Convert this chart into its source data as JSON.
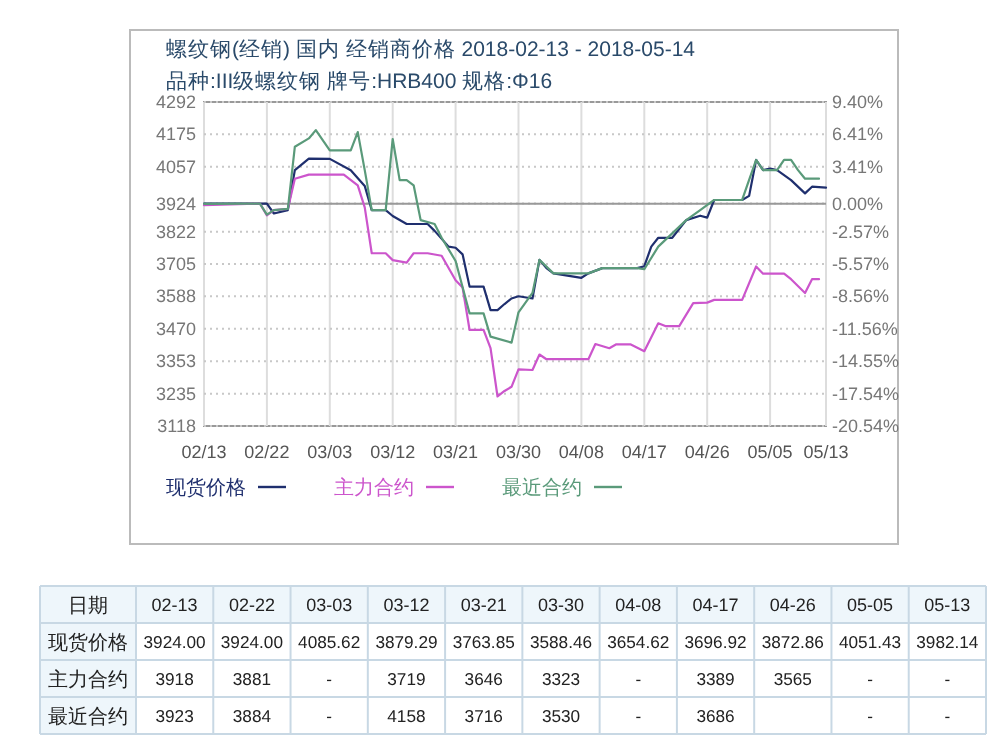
{
  "chart_data": [
    {
      "type": "line",
      "title": "螺纹钢(经销) 国内 经销商价格 2018-02-13 - 2018-05-14",
      "subtitle": "品种:III级螺纹钢 牌号:HRB400 规格:Φ16",
      "xlim": [
        "2018-02-13",
        "2018-05-13"
      ],
      "xticks": [
        {
          "value": "2018-02-13",
          "label": "02/13"
        },
        {
          "value": "2018-02-22",
          "label": "02/22"
        },
        {
          "value": "2018-03-03",
          "label": "03/03"
        },
        {
          "value": "2018-03-12",
          "label": "03/12"
        },
        {
          "value": "2018-03-21",
          "label": "03/21"
        },
        {
          "value": "2018-03-30",
          "label": "03/30"
        },
        {
          "value": "2018-04-08",
          "label": "04/08"
        },
        {
          "value": "2018-04-17",
          "label": "04/17"
        },
        {
          "value": "2018-04-26",
          "label": "04/26"
        },
        {
          "value": "2018-05-05",
          "label": "05/05"
        },
        {
          "value": "2018-05-13",
          "label": "05/13"
        }
      ],
      "ylim": [
        3118,
        4292
      ],
      "yticks": [
        3118,
        3235,
        3353,
        3470,
        3588,
        3705,
        3822,
        3924,
        4057,
        4175,
        4292
      ],
      "y2lim": [
        -20.54,
        9.4
      ],
      "y2ticks": [
        {
          "value": -20.54,
          "label": "-20.54%"
        },
        {
          "value": -17.54,
          "label": "-17.54%"
        },
        {
          "value": -14.55,
          "label": "-14.55%"
        },
        {
          "value": -11.56,
          "label": "-11.56%"
        },
        {
          "value": -8.56,
          "label": "-8.56%"
        },
        {
          "value": -5.57,
          "label": "-5.57%"
        },
        {
          "value": -2.57,
          "label": "-2.57%"
        },
        {
          "value": 0,
          "label": "0.00%"
        },
        {
          "value": 3.41,
          "label": "3.41%"
        },
        {
          "value": 6.41,
          "label": "6.41%"
        },
        {
          "value": 9.4,
          "label": "9.40%"
        }
      ],
      "ref_lines": [
        {
          "axis": "y2",
          "value": 0,
          "color": "#999999"
        }
      ],
      "grid": true,
      "legend": "bottom",
      "series": [
        {
          "name": "现货价格",
          "color": "#1f2f6e",
          "x": [
            "2018-02-13",
            "2018-02-21",
            "2018-02-22",
            "2018-02-23",
            "2018-02-25",
            "2018-02-26",
            "2018-02-28",
            "2018-03-03",
            "2018-03-06",
            "2018-03-08",
            "2018-03-09",
            "2018-03-11",
            "2018-03-12",
            "2018-03-14",
            "2018-03-17",
            "2018-03-18",
            "2018-03-20",
            "2018-03-21",
            "2018-03-22",
            "2018-03-23",
            "2018-03-25",
            "2018-03-26",
            "2018-03-27",
            "2018-03-28",
            "2018-03-29",
            "2018-03-30",
            "2018-04-01",
            "2018-04-02",
            "2018-04-03",
            "2018-04-04",
            "2018-04-08",
            "2018-04-09",
            "2018-04-11",
            "2018-04-16",
            "2018-04-17",
            "2018-04-18",
            "2018-04-19",
            "2018-04-21",
            "2018-04-23",
            "2018-04-25",
            "2018-04-26",
            "2018-04-27",
            "2018-05-01",
            "2018-05-02",
            "2018-05-03",
            "2018-05-04",
            "2018-05-05",
            "2018-05-06",
            "2018-05-08",
            "2018-05-10",
            "2018-05-11",
            "2018-05-13"
          ],
          "values": [
            3924,
            3924,
            3924,
            3888,
            3900,
            4045,
            4087,
            4086,
            4045,
            3988,
            3900,
            3900,
            3879,
            3850,
            3850,
            3825,
            3768,
            3764,
            3740,
            3623,
            3623,
            3538,
            3538,
            3560,
            3580,
            3588,
            3580,
            3720,
            3690,
            3671,
            3655,
            3671,
            3690,
            3690,
            3697,
            3768,
            3800,
            3800,
            3864,
            3880,
            3873,
            3937,
            3937,
            3952,
            4082,
            4045,
            4051,
            4045,
            4009,
            3961,
            3985,
            3982
          ]
        },
        {
          "name": "主力合约",
          "color": "#cc55cc",
          "x": [
            "2018-02-13",
            "2018-02-21",
            "2018-02-22",
            "2018-02-23",
            "2018-02-25",
            "2018-02-26",
            "2018-02-28",
            "2018-03-05",
            "2018-03-07",
            "2018-03-08",
            "2018-03-09",
            "2018-03-11",
            "2018-03-12",
            "2018-03-14",
            "2018-03-15",
            "2018-03-17",
            "2018-03-19",
            "2018-03-21",
            "2018-03-22",
            "2018-03-23",
            "2018-03-25",
            "2018-03-26",
            "2018-03-27",
            "2018-03-28",
            "2018-03-29",
            "2018-03-30",
            "2018-04-01",
            "2018-04-02",
            "2018-04-03",
            "2018-04-09",
            "2018-04-10",
            "2018-04-12",
            "2018-04-13",
            "2018-04-15",
            "2018-04-17",
            "2018-04-19",
            "2018-04-20",
            "2018-04-22",
            "2018-04-24",
            "2018-04-26",
            "2018-04-27",
            "2018-05-01",
            "2018-05-03",
            "2018-05-04",
            "2018-05-07",
            "2018-05-08",
            "2018-05-10",
            "2018-05-11",
            "2018-05-12"
          ],
          "values": [
            3918,
            3924,
            3881,
            3900,
            3905,
            4014,
            4029,
            4029,
            3990,
            3910,
            3744,
            3744,
            3719,
            3710,
            3744,
            3744,
            3735,
            3646,
            3620,
            3466,
            3466,
            3400,
            3225,
            3245,
            3260,
            3323,
            3321,
            3377,
            3360,
            3360,
            3415,
            3400,
            3414,
            3414,
            3389,
            3490,
            3480,
            3480,
            3563,
            3565,
            3575,
            3575,
            3696,
            3670,
            3670,
            3650,
            3600,
            3650,
            3650
          ]
        },
        {
          "name": "最近合约",
          "color": "#5a9a7a",
          "x": [
            "2018-02-13",
            "2018-02-21",
            "2018-02-22",
            "2018-02-23",
            "2018-02-25",
            "2018-02-26",
            "2018-02-28",
            "2018-03-01",
            "2018-03-03",
            "2018-03-06",
            "2018-03-07",
            "2018-03-08",
            "2018-03-09",
            "2018-03-11",
            "2018-03-12",
            "2018-03-13",
            "2018-03-14",
            "2018-03-15",
            "2018-03-16",
            "2018-03-18",
            "2018-03-19",
            "2018-03-21",
            "2018-03-23",
            "2018-03-25",
            "2018-03-26",
            "2018-03-29",
            "2018-03-30",
            "2018-04-01",
            "2018-04-02",
            "2018-04-04",
            "2018-04-09",
            "2018-04-11",
            "2018-04-16",
            "2018-04-17",
            "2018-04-19",
            "2018-04-23",
            "2018-04-25",
            "2018-04-27",
            "2018-05-01",
            "2018-05-03",
            "2018-05-04",
            "2018-05-06",
            "2018-05-07",
            "2018-05-08",
            "2018-05-09",
            "2018-05-10",
            "2018-05-12"
          ],
          "values": [
            3923,
            3924,
            3884,
            3900,
            3905,
            4130,
            4160,
            4190,
            4117,
            4117,
            4183,
            4045,
            3900,
            3900,
            4158,
            4009,
            4009,
            3990,
            3864,
            3850,
            3800,
            3716,
            3526,
            3526,
            3442,
            3420,
            3530,
            3600,
            3720,
            3671,
            3671,
            3690,
            3690,
            3686,
            3768,
            3864,
            3900,
            3937,
            3937,
            4082,
            4045,
            4045,
            4082,
            4082,
            4045,
            4014,
            4014
          ]
        }
      ]
    },
    {
      "type": "other",
      "xlabel": "日期",
      "categories": [
        "02-13",
        "02-22",
        "03-03",
        "03-12",
        "03-21",
        "03-30",
        "04-08",
        "04-17",
        "04-26",
        "05-05",
        "05-13"
      ],
      "series": [
        {
          "name": "现货价格",
          "values": [
            3924.0,
            3924.0,
            4085.62,
            3879.29,
            3763.85,
            3588.46,
            3654.62,
            3696.92,
            3872.86,
            4051.43,
            3982.14
          ],
          "value_labels": [
            "3924.00",
            "3924.00",
            "4085.62",
            "3879.29",
            "3763.85",
            "3588.46",
            "3654.62",
            "3696.92",
            "3872.86",
            "4051.43",
            "3982.14"
          ]
        },
        {
          "name": "主力合约",
          "values": [
            3918,
            3881,
            null,
            3719,
            3646,
            3323,
            null,
            3389,
            3565,
            null,
            null
          ],
          "value_labels": [
            "3918",
            "3881",
            "-",
            "3719",
            "3646",
            "3323",
            "-",
            "3389",
            "3565",
            "-",
            "-"
          ]
        },
        {
          "name": "最近合约",
          "values": [
            3923,
            3884,
            null,
            4158,
            3716,
            3530,
            null,
            3686,
            null,
            null,
            null
          ],
          "value_labels": [
            "3923",
            "3884",
            "-",
            "4158",
            "3716",
            "3530",
            "-",
            "3686",
            null,
            "-",
            "-"
          ]
        }
      ]
    }
  ]
}
